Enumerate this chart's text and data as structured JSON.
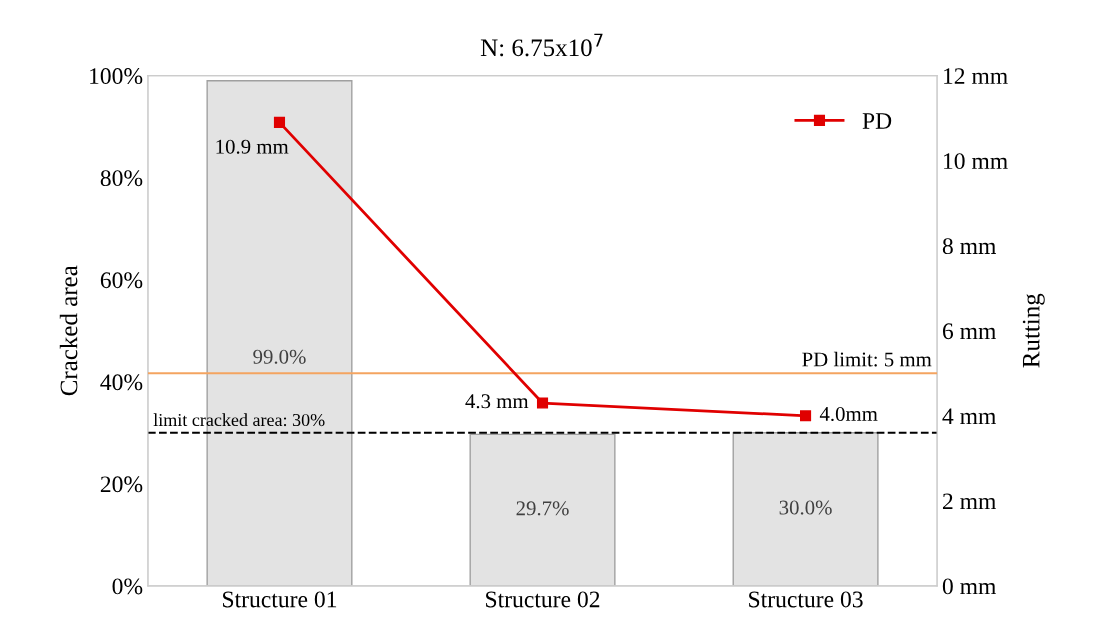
{
  "chart_data": {
    "type": "bar",
    "title": "N: 6.75x10$^{7}$",
    "ylabel": "Cracked area",
    "y2label": "Rutting",
    "categories": [
      "Structure 01",
      "Structure 02",
      "Structure 03"
    ],
    "series": [
      {
        "color": "#e3e3e3",
        "values": [
          99.0,
          29.7,
          30.0
        ],
        "value_labels": [
          "99.0%",
          "29.7%",
          "30.0%"
        ]
      },
      {
        "type": "line",
        "name": "PD",
        "axis": "y2",
        "color": "#e00000",
        "values": [
          10.9,
          4.3,
          4.0
        ],
        "value_labels": [
          "10.9 mm",
          "4.3 mm",
          "4.0mm"
        ],
        "marker": "square"
      }
    ],
    "ylim": [
      0,
      100
    ],
    "yticks": [
      {
        "value": 0,
        "label": "0%"
      },
      {
        "value": 20,
        "label": "20%"
      },
      {
        "value": 40,
        "label": "40%"
      },
      {
        "value": 60,
        "label": "60%"
      },
      {
        "value": 80,
        "label": "80%"
      },
      {
        "value": 100,
        "label": "100%"
      }
    ],
    "y2lim": [
      0,
      12
    ],
    "y2ticks": [
      {
        "value": 0,
        "label": "0 mm"
      },
      {
        "value": 2,
        "label": "2 mm"
      },
      {
        "value": 4,
        "label": "4 mm"
      },
      {
        "value": 6,
        "label": "6 mm"
      },
      {
        "value": 8,
        "label": "8 mm"
      },
      {
        "value": 10,
        "label": "10 mm"
      },
      {
        "value": 12,
        "label": "12 mm"
      }
    ],
    "ref_lines": [
      {
        "axis": "y2",
        "value": 5,
        "label": "PD limit: 5 mm",
        "color": "#f4a460",
        "line_style": "solid"
      },
      {
        "axis": "y",
        "value": 30,
        "label": "limit cracked area: 30%",
        "color": "#000000",
        "line_style": "dashed"
      }
    ],
    "grid": false,
    "legend": "top right"
  }
}
